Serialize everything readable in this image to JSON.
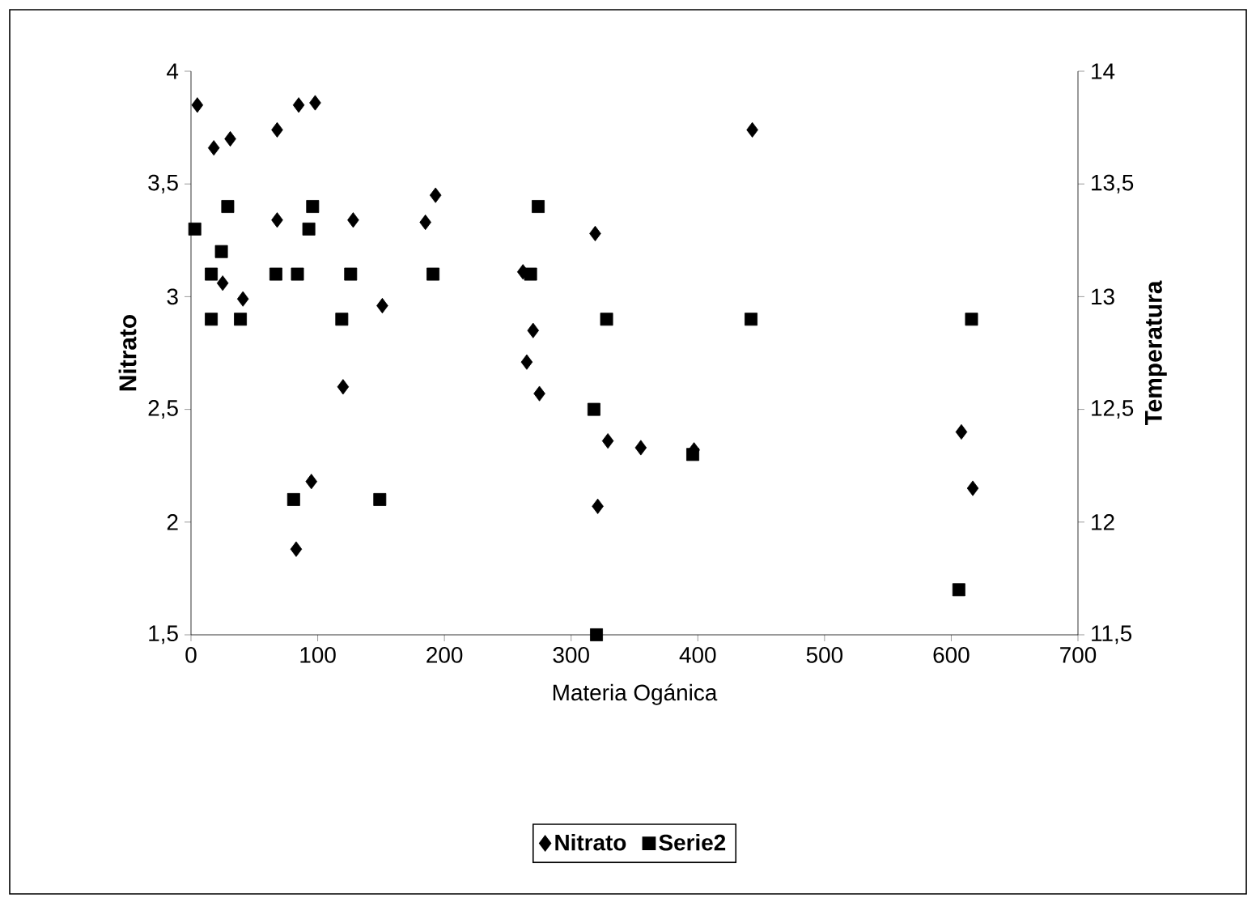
{
  "chart_data": {
    "type": "scatter",
    "xlabel": "Materia Ogánica",
    "ylabel": "Nitrato",
    "y2label": "Temperatura",
    "xlim": [
      0,
      700
    ],
    "xticks": [
      0,
      100,
      200,
      300,
      400,
      500,
      600,
      700
    ],
    "ylim": [
      1.5,
      4
    ],
    "yticks": [
      {
        "value": 1.5,
        "label": "1,5"
      },
      2,
      {
        "value": 2.5,
        "label": "2,5"
      },
      3,
      {
        "value": 3.5,
        "label": "3,5"
      },
      4
    ],
    "y2lim": [
      11.5,
      14
    ],
    "y2ticks": [
      {
        "value": 11.5,
        "label": "11,5"
      },
      12,
      {
        "value": 12.5,
        "label": "12,5"
      },
      13,
      {
        "value": 13.5,
        "label": "13,5"
      },
      14
    ],
    "legend": "bottom",
    "grid": false,
    "series": [
      {
        "name": "Nitrato",
        "color": "#000000",
        "marker": "diamond",
        "x": [
          5,
          18,
          31,
          68,
          85,
          98,
          68,
          128,
          185,
          193,
          25,
          41,
          151,
          120,
          95,
          83,
          443,
          319,
          262,
          270,
          265,
          275,
          329,
          355,
          397,
          321,
          608,
          617
        ],
        "values": [
          3.85,
          3.66,
          3.7,
          3.74,
          3.85,
          3.86,
          3.34,
          3.34,
          3.33,
          3.45,
          3.06,
          2.99,
          2.96,
          2.6,
          2.18,
          1.88,
          3.74,
          3.28,
          3.11,
          2.85,
          2.71,
          2.57,
          2.36,
          2.33,
          2.32,
          2.07,
          2.4,
          2.15
        ]
      },
      {
        "name": "Serie2",
        "color": "#000000",
        "marker": "square",
        "axis": "y2",
        "x": [
          3,
          29,
          24,
          16,
          16,
          39,
          67,
          84,
          93,
          96,
          126,
          119,
          191,
          81,
          149,
          274,
          268,
          328,
          442,
          318,
          396,
          320,
          616,
          606
        ],
        "values": [
          13.3,
          13.4,
          13.2,
          13.1,
          12.9,
          12.9,
          13.1,
          13.1,
          13.3,
          13.4,
          13.1,
          12.9,
          13.1,
          12.1,
          12.1,
          13.4,
          13.1,
          12.9,
          12.9,
          12.5,
          12.3,
          11.5,
          12.9,
          11.7
        ]
      }
    ]
  }
}
